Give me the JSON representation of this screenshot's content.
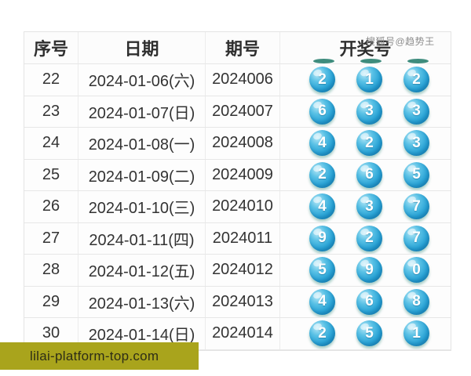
{
  "watermark": {
    "text": "搜狐号@趋势王"
  },
  "table": {
    "headers": [
      "序号",
      "日期",
      "期号",
      "开奖号"
    ],
    "rows": [
      {
        "seq": "22",
        "date": "2024-01-06(六)",
        "issue": "2024006",
        "balls": [
          "2",
          "1",
          "2"
        ]
      },
      {
        "seq": "23",
        "date": "2024-01-07(日)",
        "issue": "2024007",
        "balls": [
          "6",
          "3",
          "3"
        ]
      },
      {
        "seq": "24",
        "date": "2024-01-08(一)",
        "issue": "2024008",
        "balls": [
          "4",
          "2",
          "3"
        ]
      },
      {
        "seq": "25",
        "date": "2024-01-09(二)",
        "issue": "2024009",
        "balls": [
          "2",
          "6",
          "5"
        ]
      },
      {
        "seq": "26",
        "date": "2024-01-10(三)",
        "issue": "2024010",
        "balls": [
          "4",
          "3",
          "7"
        ]
      },
      {
        "seq": "27",
        "date": "2024-01-11(四)",
        "issue": "2024011",
        "balls": [
          "9",
          "2",
          "7"
        ]
      },
      {
        "seq": "28",
        "date": "2024-01-12(五)",
        "issue": "2024012",
        "balls": [
          "5",
          "9",
          "0"
        ]
      },
      {
        "seq": "29",
        "date": "2024-01-13(六)",
        "issue": "2024013",
        "balls": [
          "4",
          "6",
          "8"
        ]
      },
      {
        "seq": "30",
        "date": "2024-01-14(日)",
        "issue": "2024014",
        "balls": [
          "2",
          "5",
          "1"
        ]
      }
    ]
  },
  "footer": {
    "domain": "lilai-platform-top.com"
  },
  "colors": {
    "ball_main": "#2aa4d6",
    "ball_dark": "#1583b5",
    "ball_highlight": "#b9e9f7",
    "cutoff_dash": "#3e8c7d",
    "footer_background": "#a9a41c",
    "header_text": "#2f2f2f",
    "cell_text": "#333333",
    "watermark_text": "#8d8d8d",
    "table_border": "#e7e7e7"
  }
}
